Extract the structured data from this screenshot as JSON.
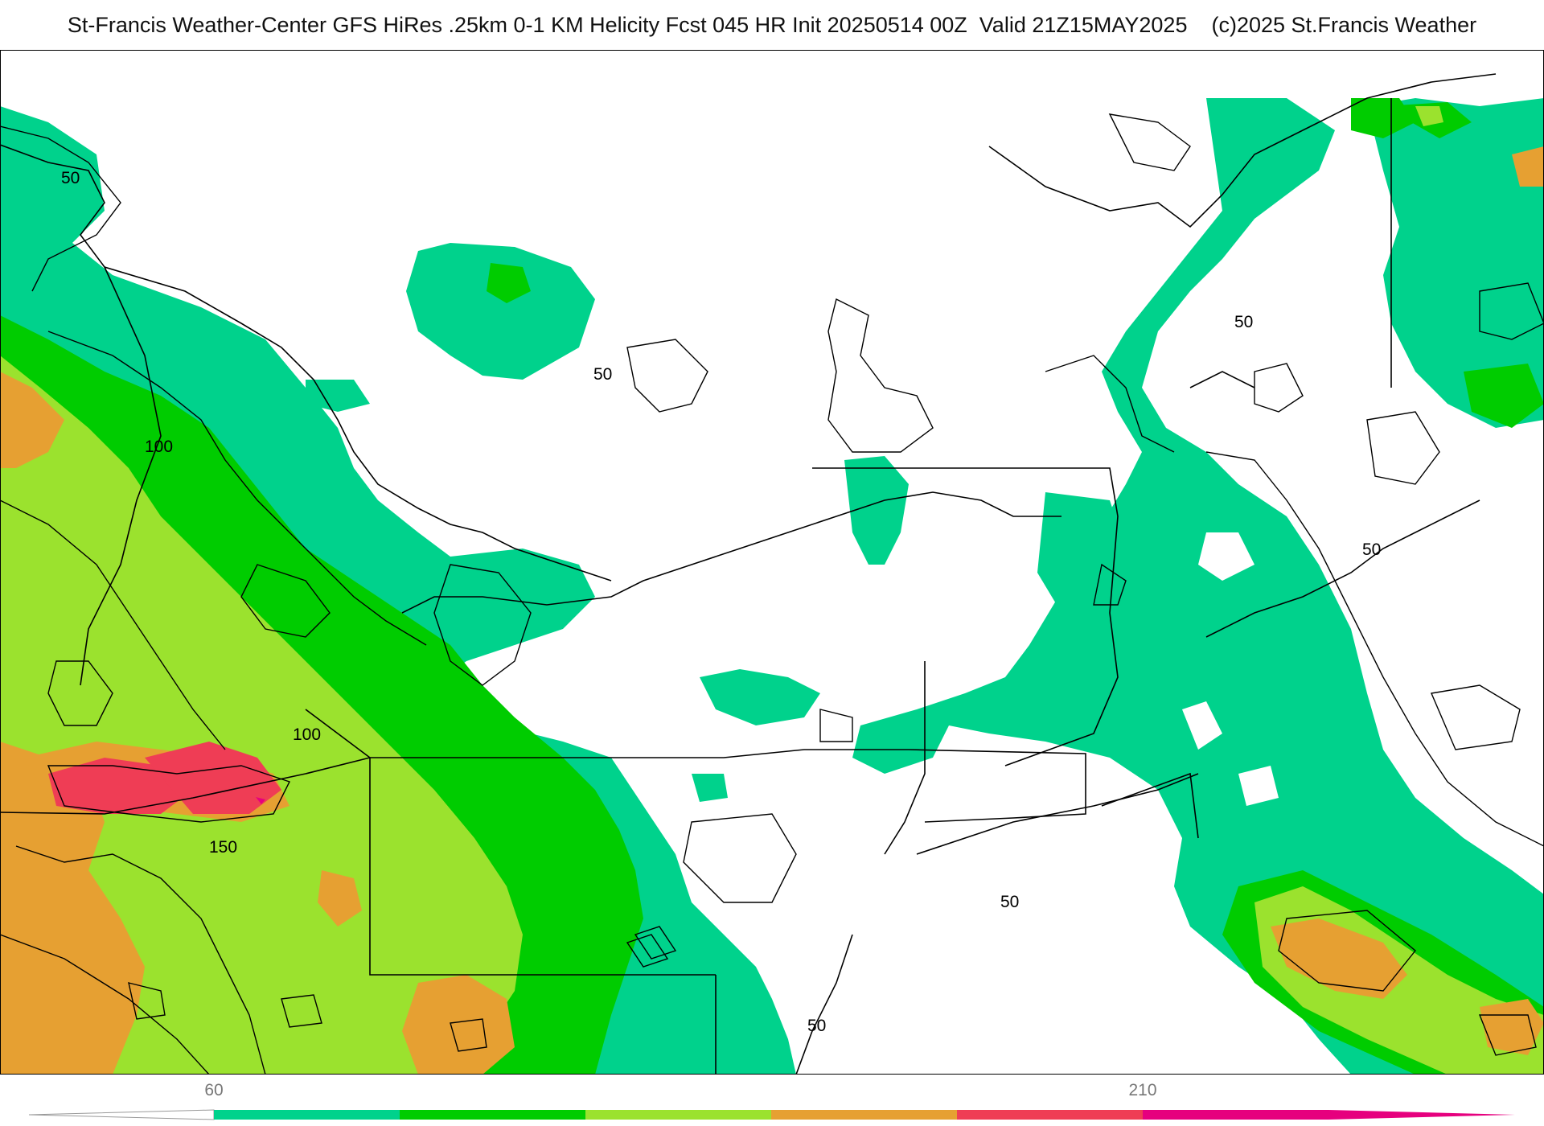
{
  "title": "St-Francis Weather-Center GFS HiRes .25km 0-1 KM Helicity Fcst 045 HR Init 20250514 00Z  Valid 21Z15MAY2025    (c)2025 St.Francis Weather",
  "colorbar": {
    "tick_labels": [
      "60",
      "210"
    ],
    "colors": [
      "#00d28c",
      "#00cc00",
      "#9be22e",
      "#e6a032",
      "#ef3d55",
      "#e6007e"
    ]
  },
  "map": {
    "contour_labels": [
      "50",
      "50",
      "50",
      "50",
      "50",
      "50",
      "100",
      "100",
      "150"
    ],
    "fill_colors": {
      "band_50_100": "#00d28c",
      "band_100_150": "#00cc00",
      "band_150_200": "#9be22e",
      "band_200_250": "#e6a032",
      "band_250_300": "#ef3d55",
      "band_300_plus": "#e6007e"
    }
  }
}
